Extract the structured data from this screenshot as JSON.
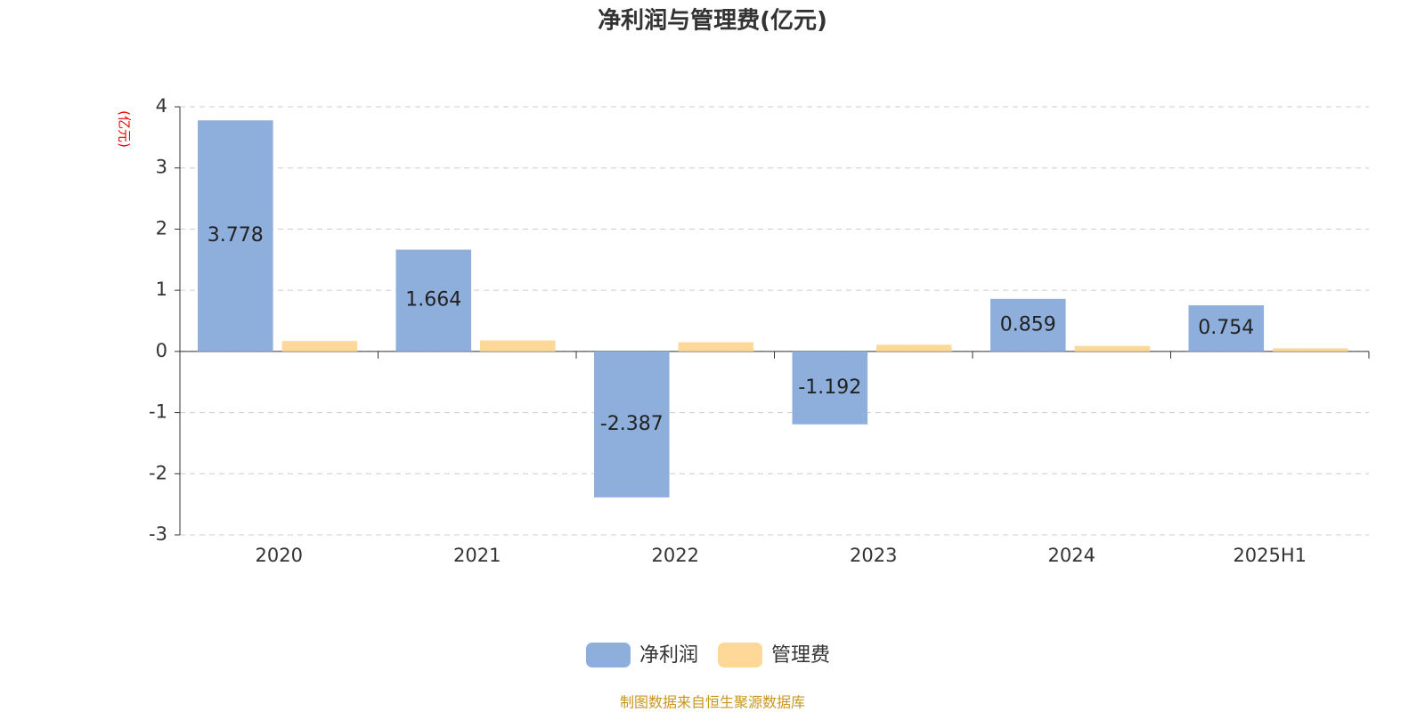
{
  "chart_data": {
    "type": "bar",
    "title": "净利润与管理费(亿元)",
    "y_label": "(亿元)",
    "categories": [
      "2020",
      "2021",
      "2022",
      "2023",
      "2024",
      "2025H1"
    ],
    "series": [
      {
        "name": "净利润",
        "color": "#8eaedb",
        "values": [
          3.778,
          1.664,
          -2.387,
          -1.192,
          0.859,
          0.754
        ]
      },
      {
        "name": "管理费",
        "color": "#fdd898",
        "values": [
          0.17,
          0.18,
          0.15,
          0.11,
          0.09,
          0.05
        ]
      }
    ],
    "ylim": [
      -3,
      4
    ],
    "yticks": [
      -3,
      -2,
      -1,
      0,
      1,
      2,
      3,
      4
    ],
    "grid": true,
    "source": "制图数据来自恒生聚源数据库"
  }
}
